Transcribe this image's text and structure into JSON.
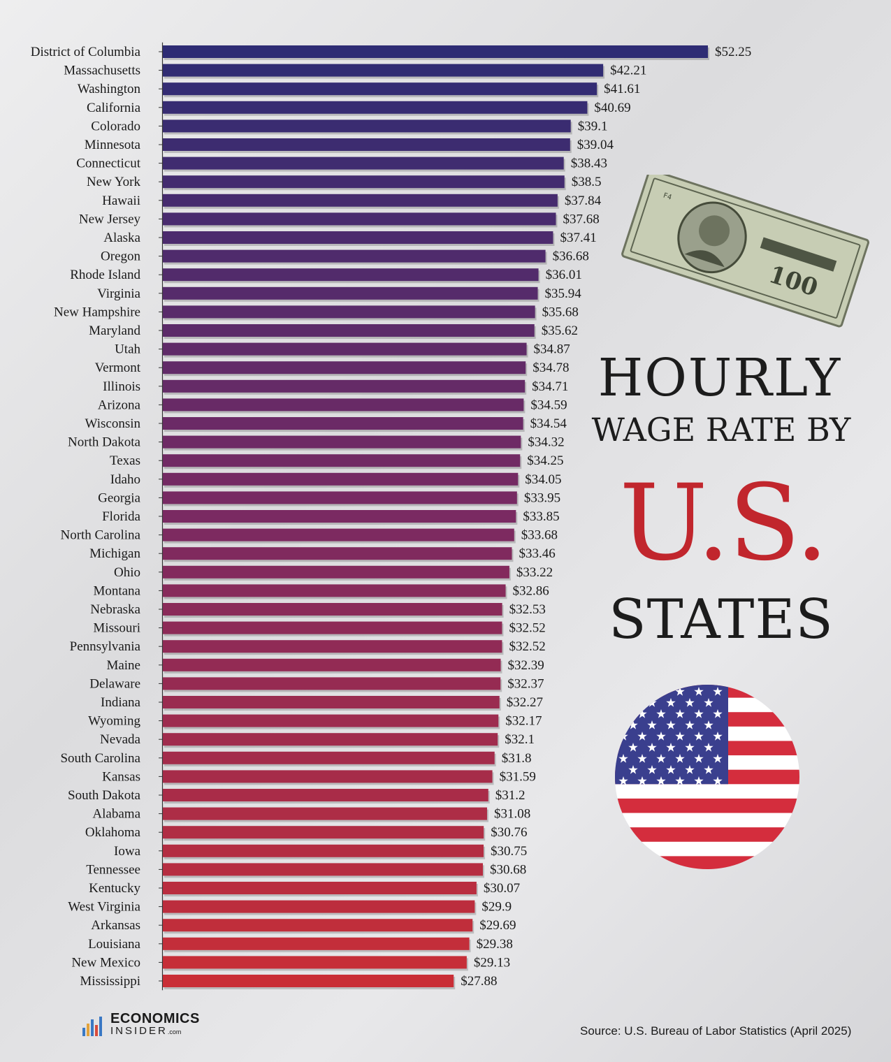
{
  "title": {
    "line1": "HOURLY",
    "line2": "WAGE RATE BY",
    "line3": "U.S.",
    "line4": "STATES"
  },
  "colors": {
    "bar_top": "#2e2c74",
    "bar_middle": "#7a2a62",
    "bar_bottom": "#c92e36",
    "title_accent": "#c1262d",
    "flag_red": "#d42d3d",
    "flag_blue": "#3a3f8e"
  },
  "icons": [
    "hundred-dollar-bill-icon",
    "us-flag-circle-icon",
    "economics-insider-logo-icon"
  ],
  "logo": {
    "line1": "ECONOMICS",
    "line2": "INSIDER",
    "suffix": ".com"
  },
  "source": "Source: U.S. Bureau of Labor Statistics (April 2025)",
  "chart_data": {
    "type": "bar",
    "orientation": "horizontal",
    "title": "HOURLY WAGE RATE BY U.S. STATES",
    "value_prefix": "$",
    "grid": false,
    "xlim": [
      0,
      53
    ],
    "categories": [
      "District of Columbia",
      "Massachusetts",
      "Washington",
      "California",
      "Colorado",
      "Minnesota",
      "Connecticut",
      "New York",
      "Hawaii",
      "New Jersey",
      "Alaska",
      "Oregon",
      "Rhode Island",
      "Virginia",
      "New Hampshire",
      "Maryland",
      "Utah",
      "Vermont",
      "Illinois",
      "Arizona",
      "Wisconsin",
      "North Dakota",
      "Texas",
      "Idaho",
      "Georgia",
      "Florida",
      "North Carolina",
      "Michigan",
      "Ohio",
      "Montana",
      "Nebraska",
      "Missouri",
      "Pennsylvania",
      "Maine",
      "Delaware",
      "Indiana",
      "Wyoming",
      "Nevada",
      "South Carolina",
      "Kansas",
      "South Dakota",
      "Alabama",
      "Oklahoma",
      "Iowa",
      "Tennessee",
      "Kentucky",
      "West Virginia",
      "Arkansas",
      "Louisiana",
      "New Mexico",
      "Mississippi"
    ],
    "values": [
      52.25,
      42.21,
      41.61,
      40.69,
      39.1,
      39.04,
      38.43,
      38.5,
      37.84,
      37.68,
      37.41,
      36.68,
      36.01,
      35.94,
      35.68,
      35.62,
      34.87,
      34.78,
      34.71,
      34.59,
      34.54,
      34.32,
      34.25,
      34.05,
      33.95,
      33.85,
      33.68,
      33.46,
      33.22,
      32.86,
      32.53,
      32.52,
      32.52,
      32.39,
      32.37,
      32.27,
      32.17,
      32.1,
      31.8,
      31.59,
      31.2,
      31.08,
      30.76,
      30.75,
      30.68,
      30.07,
      29.9,
      29.69,
      29.38,
      29.13,
      27.88
    ],
    "value_labels": [
      "$52.25",
      "$42.21",
      "$41.61",
      "$40.69",
      "$39.1",
      "$39.04",
      "$38.43",
      "$38.5",
      "$37.84",
      "$37.68",
      "$37.41",
      "$36.68",
      "$36.01",
      "$35.94",
      "$35.68",
      "$35.62",
      "$34.87",
      "$34.78",
      "$34.71",
      "$34.59",
      "$34.54",
      "$34.32",
      "$34.25",
      "$34.05",
      "$33.95",
      "$33.85",
      "$33.68",
      "$33.46",
      "$33.22",
      "$32.86",
      "$32.53",
      "$32.52",
      "$32.52",
      "$32.39",
      "$32.37",
      "$32.27",
      "$32.17",
      "$32.1",
      "$31.8",
      "$31.59",
      "$31.2",
      "$31.08",
      "$30.76",
      "$30.75",
      "$30.68",
      "$30.07",
      "$29.9",
      "$29.69",
      "$29.38",
      "$29.13",
      "$27.88"
    ]
  }
}
